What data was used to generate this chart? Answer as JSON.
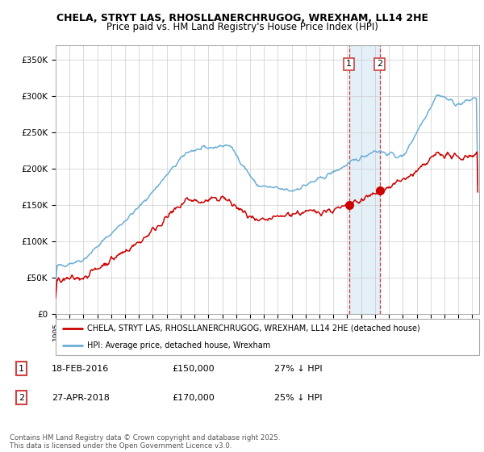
{
  "title_line1": "CHELA, STRYT LAS, RHOSLLANERCHRUGOG, WREXHAM, LL14 2HE",
  "title_line2": "Price paid vs. HM Land Registry's House Price Index (HPI)",
  "yticks": [
    0,
    50000,
    100000,
    150000,
    200000,
    250000,
    300000,
    350000
  ],
  "ytick_labels": [
    "£0",
    "£50K",
    "£100K",
    "£150K",
    "£200K",
    "£250K",
    "£300K",
    "£350K"
  ],
  "hpi_color": "#6baed6",
  "price_color": "#cc0000",
  "marker1_date_x": 2016.13,
  "marker1_price_y": 150000,
  "marker2_date_x": 2018.33,
  "marker2_price_y": 170000,
  "marker1_label": "1",
  "marker2_label": "2",
  "legend_label_price": "CHELA, STRYT LAS, RHOSLLANERCHRUGOG, WREXHAM, LL14 2HE (detached house)",
  "legend_label_hpi": "HPI: Average price, detached house, Wrexham",
  "footer": "Contains HM Land Registry data © Crown copyright and database right 2025.\nThis data is licensed under the Open Government Licence v3.0.",
  "xlim_start": 1995,
  "xlim_end": 2025.5,
  "ylim_min": 0,
  "ylim_max": 370000,
  "shaded_x1": 2016.13,
  "shaded_x2": 2018.33,
  "grid_color": "#cccccc"
}
